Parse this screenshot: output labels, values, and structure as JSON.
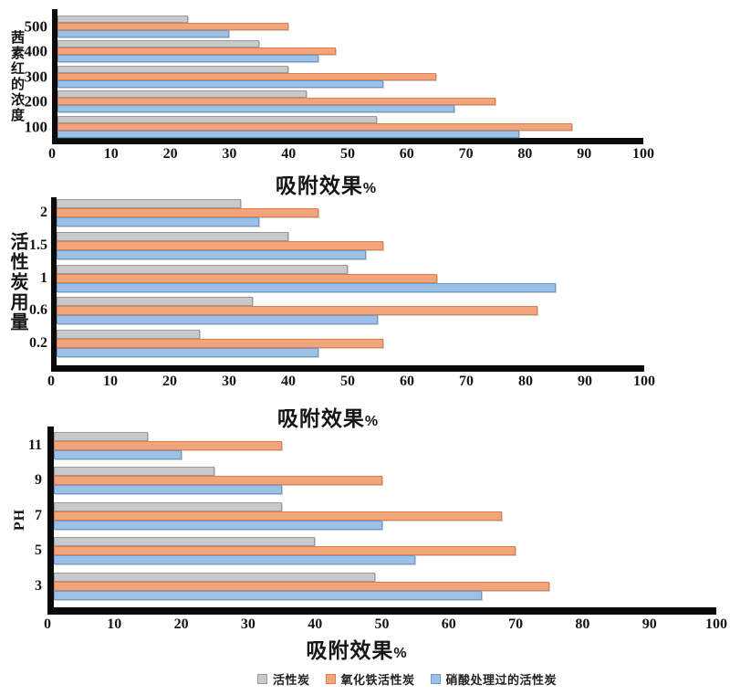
{
  "colors": {
    "axis": "#0b0b0b",
    "background": "#ffffff",
    "gray_fill": "#c9c9cb",
    "gray_border": "#999a9c",
    "orange_fill": "#f2a47a",
    "orange_border": "#e07f4c",
    "blue_fill": "#9dc1e6",
    "blue_border": "#6a9bd0"
  },
  "legend": {
    "items": [
      {
        "label": "活性炭",
        "fill": "#c9c9cb",
        "border": "#999a9c"
      },
      {
        "label": "氧化铁活性炭",
        "fill": "#f2a47a",
        "border": "#e07f4c"
      },
      {
        "label": "硝酸处理过的活性炭",
        "fill": "#9dc1e6",
        "border": "#6a9bd0"
      }
    ]
  },
  "chart_data": [
    {
      "type": "bar",
      "orientation": "horizontal",
      "title": "吸附效果%",
      "xlabel": "吸附效果%",
      "ylabel": "茜素红的浓度",
      "categories": [
        "500",
        "400",
        "300",
        "200",
        "100"
      ],
      "xlim": [
        0,
        100
      ],
      "xticks": [
        0,
        10,
        20,
        30,
        40,
        50,
        60,
        70,
        80,
        90,
        100
      ],
      "grid": false,
      "legend_position": "none",
      "series": [
        {
          "name": "活性炭",
          "values": [
            23,
            35,
            40,
            43,
            55
          ]
        },
        {
          "name": "氧化铁活性炭",
          "values": [
            40,
            48,
            65,
            75,
            88
          ]
        },
        {
          "name": "硝酸处理过的活性炭",
          "values": [
            30,
            45,
            56,
            68,
            79
          ]
        }
      ]
    },
    {
      "type": "bar",
      "orientation": "horizontal",
      "title": "吸附效果%",
      "xlabel": "吸附效果%",
      "ylabel": "活性炭用量",
      "categories": [
        "2",
        "1.5",
        "1",
        "0.6",
        "0.2"
      ],
      "xlim": [
        0,
        100
      ],
      "xticks": [
        0,
        10,
        20,
        30,
        40,
        50,
        60,
        70,
        80,
        90,
        100
      ],
      "grid": false,
      "legend_position": "none",
      "series": [
        {
          "name": "活性炭",
          "values": [
            32,
            40,
            50,
            34,
            25
          ]
        },
        {
          "name": "氧化铁活性炭",
          "values": [
            45,
            56,
            65,
            82,
            56
          ]
        },
        {
          "name": "硝酸处理过的活性炭",
          "values": [
            35,
            53,
            85,
            55,
            45
          ]
        }
      ]
    },
    {
      "type": "bar",
      "orientation": "horizontal",
      "title": "吸附效果%",
      "xlabel": "吸附效果%",
      "ylabel": "PH",
      "categories": [
        "11",
        "9",
        "7",
        "5",
        "3"
      ],
      "xlim": [
        0,
        100
      ],
      "xticks": [
        0,
        10,
        20,
        30,
        40,
        50,
        60,
        70,
        80,
        90,
        100
      ],
      "grid": false,
      "legend_position": "bottom",
      "series": [
        {
          "name": "活性炭",
          "values": [
            15,
            25,
            35,
            40,
            49
          ]
        },
        {
          "name": "氧化铁活性炭",
          "values": [
            35,
            50,
            68,
            70,
            75
          ]
        },
        {
          "name": "硝酸处理过的活性炭",
          "values": [
            20,
            35,
            50,
            55,
            65
          ]
        }
      ]
    }
  ]
}
